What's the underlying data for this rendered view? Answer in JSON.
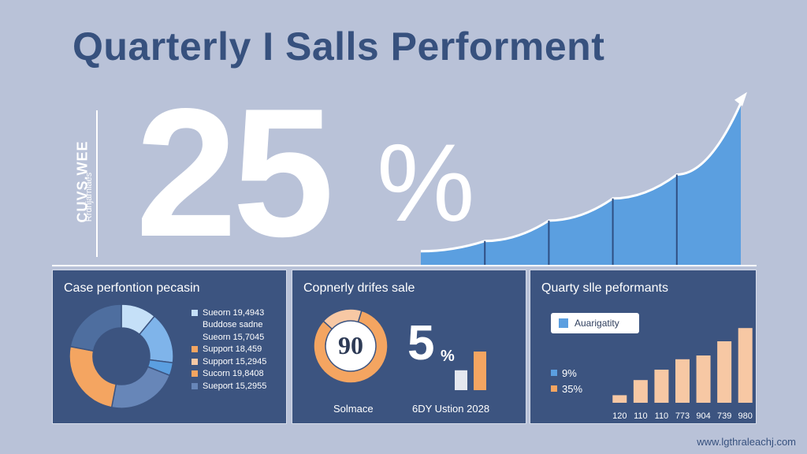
{
  "header": {
    "title": "Quarterly I Salls Performent"
  },
  "side_label": {
    "title": "CUVS.WEE",
    "subtitle": "Rrdhjarnlaes"
  },
  "headline": {
    "number": "25",
    "unit": "%"
  },
  "colors": {
    "background": "#b9c2d8",
    "panel": "#3c5480",
    "title": "#37517e",
    "blue": "#5b9fe0",
    "light_blue": "#c5e0f8",
    "orange": "#f4a561",
    "peach": "#f7c8a4",
    "slate": "#6786b8",
    "white": "#ffffff"
  },
  "chart_data": [
    {
      "type": "area",
      "title": "",
      "x": [
        1,
        2,
        3,
        4,
        5,
        6
      ],
      "values": [
        8,
        14,
        26,
        39,
        53,
        95
      ],
      "ylim": [
        0,
        100
      ],
      "grid": false,
      "note": ""
    },
    {
      "type": "pie",
      "title": "Case perfontion pecasin",
      "slices": [
        {
          "label": "Sueorn 19,4943",
          "value": 11,
          "color": "#c5e0f8"
        },
        {
          "label": "Sueorn 15,7045",
          "value": 16,
          "color": "#7fb4ea"
        },
        {
          "label": "Support 18,459",
          "value": 4,
          "color": "#5b9fe0"
        },
        {
          "label": "Support 15,2945",
          "value": 22,
          "color": "#6786b8"
        },
        {
          "label": "Sucorn 19,8408",
          "value": 25,
          "color": "#f4a561"
        },
        {
          "label": "Sueport 15,2955",
          "value": 22,
          "color": "#4e6e9f"
        }
      ],
      "legend": [
        {
          "text": "Sueorn 19,4943",
          "color": "#c5e0f8"
        },
        {
          "text": "Buddose sadne",
          "color": ""
        },
        {
          "text": "Sueorn 15,7045",
          "color": ""
        },
        {
          "text": "Support 18,459",
          "color": "#f4a561"
        },
        {
          "text": "Support 15,2945",
          "color": "#f7c8a4"
        },
        {
          "text": "Sucorn 19,8408",
          "color": "#f4a561"
        },
        {
          "text": "Sueport 15,2955",
          "color": "#6786b8"
        }
      ],
      "legend_position": "right"
    },
    {
      "type": "pie",
      "title": "Copnerly drifes sale",
      "center_label": "90",
      "slices": [
        {
          "label": "orange",
          "value": 82,
          "color": "#f4a561"
        },
        {
          "label": "peach",
          "value": 18,
          "color": "#f7c8a4"
        }
      ],
      "highlight_value": "5",
      "highlight_unit": "%",
      "bars": [
        {
          "value": 36,
          "color": "#e4e7ef"
        },
        {
          "value": 70,
          "color": "#f4a561"
        }
      ],
      "caption_left": "Solmace",
      "caption_right": "6DY Ustion 2028"
    },
    {
      "type": "bar",
      "title": "Quarty slle peformants",
      "legend_box": "Auarigatity",
      "legend": [
        {
          "text": "9%",
          "color": "#5b9fe0"
        },
        {
          "text": "35%",
          "color": "#f4a561"
        }
      ],
      "categories": [
        "120",
        "110",
        "110",
        "773",
        "904",
        "739",
        "980"
      ],
      "values": [
        8,
        24,
        35,
        46,
        50,
        65,
        79
      ],
      "ylim": [
        0,
        100
      ]
    }
  ],
  "footer": {
    "url": "www.lgthraleachj.com"
  }
}
